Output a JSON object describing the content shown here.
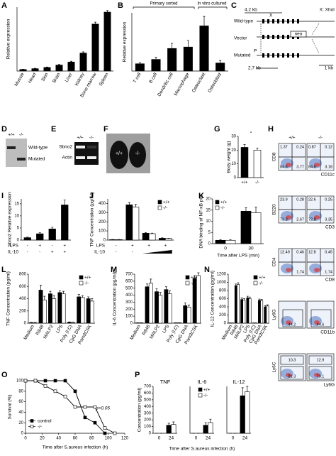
{
  "panel_letters": [
    "A",
    "B",
    "C",
    "D",
    "E",
    "F",
    "G",
    "H",
    "I",
    "J",
    "K",
    "L",
    "M",
    "N",
    "O",
    "P"
  ],
  "chart_data": [
    {
      "type": "bar",
      "ylabel": "Relative expression",
      "categories": [
        "Muscle",
        "Heart",
        "Skin",
        "Brain",
        "Liver",
        "Kidney",
        "Bone marrow",
        "Spleen"
      ],
      "rotate_labels": true,
      "ylim": [
        0,
        3.2
      ],
      "series": [
        {
          "color": "#000000",
          "values": [
            0.08,
            0.12,
            0.18,
            0.3,
            0.45,
            0.9,
            2.35,
            2.95
          ],
          "errors": [
            0.01,
            0.02,
            0.02,
            0.03,
            0.04,
            0.06,
            0.1,
            0.08
          ]
        }
      ]
    },
    {
      "type": "bar",
      "ylabel": "Relative expression",
      "annotations": [
        "Primary sorted",
        "In vitro cultured"
      ],
      "categories": [
        "T cell",
        "B cell",
        "Dendritic cell",
        "Macrophage",
        "Osteoclast",
        "Osteoblast"
      ],
      "rotate_labels": true,
      "ylim": [
        0,
        8
      ],
      "series": [
        {
          "color": "#000000",
          "values": [
            1.0,
            1.6,
            3.1,
            3.3,
            6.2,
            1.1
          ],
          "errors": [
            0.15,
            0.3,
            0.7,
            0.9,
            1.3,
            0.35
          ]
        }
      ]
    },
    {
      "type": "bar",
      "ylabel": "Body weight (g)",
      "annotations": [
        "*"
      ],
      "categories": [
        "+/+",
        "-/-"
      ],
      "bar_colors": [
        "#000000",
        "#ffffff"
      ],
      "ylim": [
        0,
        30
      ],
      "yticks": [
        0,
        10,
        20,
        30
      ],
      "series": [
        {
          "color": "#000000",
          "values": [
            22,
            20
          ],
          "errors": [
            2,
            1.5
          ]
        }
      ]
    },
    {
      "type": "bar",
      "ylabel": "Sbno2 Relative expression",
      "ylim": [
        0,
        17
      ],
      "yticks": [
        0,
        5,
        10,
        15
      ],
      "treatments": [
        {
          "name": "LPS",
          "values": [
            "-",
            "+",
            "-",
            "+"
          ]
        },
        {
          "name": "IL-10",
          "values": [
            "-",
            "-",
            "+",
            "+"
          ]
        }
      ],
      "series": [
        {
          "color": "#000000",
          "values": [
            1,
            2.6,
            4.6,
            14.5
          ],
          "errors": [
            0.2,
            0.5,
            0.7,
            2
          ]
        }
      ]
    },
    {
      "type": "bar",
      "ylabel": "TNF Concentration (pg/ml)",
      "ylim": [
        0,
        450
      ],
      "yticks": [
        0,
        100,
        200,
        300,
        400
      ],
      "legend": "top-right",
      "treatments": [
        {
          "name": "LPS",
          "values": [
            "-",
            "+",
            "+",
            "+"
          ]
        },
        {
          "name": "IL-10",
          "values": [
            "-",
            "-",
            null,
            null
          ],
          "ramp": true
        }
      ],
      "series": [
        {
          "name": "+/+",
          "color": "#000000",
          "values": [
            5,
            385,
            75,
            20
          ],
          "errors": [
            2,
            25,
            8,
            4
          ]
        },
        {
          "name": "-/-",
          "color": "#ffffff",
          "values": [
            5,
            360,
            70,
            18
          ],
          "errors": [
            2,
            30,
            6,
            3
          ]
        }
      ]
    },
    {
      "type": "bar",
      "ylabel": "DNA binding of NF-κB p65",
      "xlabel": "Time after LPS (min)",
      "categories": [
        "0",
        "30"
      ],
      "ylim": [
        0,
        20
      ],
      "yticks": [
        0,
        5,
        10,
        15,
        20
      ],
      "legend": "top-left",
      "series": [
        {
          "name": "+/+",
          "color": "#000000",
          "values": [
            1.5,
            14.5
          ],
          "errors": [
            0.3,
            1.5
          ]
        },
        {
          "name": "-/-",
          "color": "#ffffff",
          "values": [
            1.5,
            13.8
          ],
          "errors": [
            0.3,
            2.5
          ]
        }
      ]
    },
    {
      "type": "bar",
      "ylabel": "TNF Concentration (pg/ml)",
      "categories": [
        "Medium",
        "R848",
        "MALP2",
        "LPS",
        "Poly (I:C)",
        "CpG DNA",
        "Pam3CSK"
      ],
      "rotate_labels": true,
      "ylim": [
        0,
        800
      ],
      "yticks": [
        0,
        200,
        400,
        600,
        800
      ],
      "legend": "top-right",
      "series": [
        {
          "name": "+/+",
          "color": "#000000",
          "values": [
            10,
            540,
            480,
            500,
            15,
            430,
            400
          ],
          "errors": [
            3,
            80,
            40,
            30,
            5,
            40,
            30
          ]
        },
        {
          "name": "-/-",
          "color": "#ffffff",
          "values": [
            10,
            380,
            400,
            480,
            12,
            420,
            360
          ],
          "errors": [
            3,
            60,
            50,
            40,
            5,
            30,
            40
          ]
        }
      ]
    },
    {
      "type": "bar",
      "ylabel": "IL-6 Concentration (pg/ml)",
      "categories": [
        "Medium",
        "R848",
        "MALP2",
        "LPS",
        "Poly (I:C)",
        "CpG DNA",
        "Pam3CSK"
      ],
      "rotate_labels": true,
      "ylim": [
        0,
        700
      ],
      "yticks": [
        0,
        100,
        200,
        300,
        400,
        500,
        600,
        700
      ],
      "legend": "top-right",
      "series": [
        {
          "name": "+/+",
          "color": "#000000",
          "values": [
            5,
            520,
            450,
            480,
            5,
            250,
            640
          ],
          "errors": [
            2,
            40,
            40,
            40,
            2,
            40,
            40
          ]
        },
        {
          "name": "-/-",
          "color": "#ffffff",
          "values": [
            5,
            570,
            400,
            420,
            5,
            230,
            680
          ],
          "errors": [
            2,
            60,
            40,
            40,
            2,
            30,
            40
          ]
        }
      ]
    },
    {
      "type": "bar",
      "ylabel": "IL-12 Concentration (pg/ml)",
      "categories": [
        "Medium",
        "R848",
        "MALP2",
        "LPS",
        "Poly (I:C)",
        "CpG DNA",
        "Pam3CSK"
      ],
      "rotate_labels": true,
      "ylim": [
        0,
        1200
      ],
      "yticks": [
        0,
        200,
        400,
        600,
        800,
        1000,
        1200
      ],
      "legend": "top-right",
      "series": [
        {
          "name": "+/+",
          "color": "#000000",
          "values": [
            5,
            920,
            580,
            620,
            5,
            560,
            400
          ],
          "errors": [
            2,
            40,
            40,
            40,
            2,
            30,
            30
          ]
        },
        {
          "name": "-/-",
          "color": "#ffffff",
          "values": [
            5,
            950,
            560,
            600,
            5,
            550,
            420
          ],
          "errors": [
            2,
            40,
            40,
            40,
            2,
            30,
            30
          ]
        }
      ]
    },
    {
      "type": "line",
      "ylabel": "Survival (%)",
      "xlabel": "Time after S.aureus infection (h)",
      "annotations": [
        "p>0.05"
      ],
      "xlim": [
        0,
        120
      ],
      "xticks": [
        0,
        20,
        40,
        60,
        80,
        100,
        120
      ],
      "ylim": [
        0,
        100
      ],
      "yticks": [
        0,
        20,
        40,
        60,
        80,
        100
      ],
      "legend": "bottom-left",
      "series": [
        {
          "name": "control",
          "color": "#000000",
          "marker_fill": "#000000",
          "x": [
            0,
            12,
            24,
            36,
            48,
            60,
            72,
            84,
            96
          ],
          "values": [
            100,
            100,
            100,
            100,
            100,
            80,
            30,
            20,
            0
          ]
        },
        {
          "name": "-/-",
          "color": "#000000",
          "marker_fill": "#ffffff",
          "x": [
            0,
            12,
            24,
            36,
            48,
            60,
            72,
            84,
            96,
            108
          ],
          "values": [
            100,
            100,
            90,
            80,
            70,
            50,
            50,
            50,
            10,
            0
          ]
        }
      ]
    },
    {
      "type": "bar",
      "title": "TNF",
      "ylabel": "Concentration (pg/ml)",
      "categories": [
        "0",
        "24"
      ],
      "ylim": [
        0,
        700
      ],
      "yticks": [
        0,
        100,
        200,
        300,
        400,
        500,
        600,
        700
      ],
      "series": [
        {
          "color": "#000000",
          "values": [
            0,
            120
          ],
          "errors": [
            0,
            30
          ]
        },
        {
          "color": "#ffffff",
          "values": [
            0,
            130
          ],
          "errors": [
            0,
            40
          ]
        }
      ]
    },
    {
      "type": "bar",
      "title": "IL-6",
      "xlabel": "Time after S.aureus infection (h)",
      "categories": [
        "0",
        "24"
      ],
      "ylim": [
        0,
        700
      ],
      "legend": "top-right",
      "series": [
        {
          "name": "+/+",
          "color": "#000000",
          "values": [
            0,
            120
          ],
          "errors": [
            0,
            40
          ]
        },
        {
          "name": "-/-",
          "color": "#ffffff",
          "values": [
            0,
            160
          ],
          "errors": [
            0,
            50
          ]
        }
      ]
    },
    {
      "type": "bar",
      "title": "IL-12",
      "categories": [
        "0",
        "24"
      ],
      "ylim": [
        0,
        700
      ],
      "series": [
        {
          "color": "#000000",
          "values": [
            0,
            560
          ],
          "errors": [
            0,
            120
          ]
        },
        {
          "color": "#ffffff",
          "values": [
            0,
            620
          ],
          "errors": [
            0,
            80
          ]
        }
      ]
    }
  ],
  "gene_map": {
    "labels": [
      "4.2 kb",
      "X",
      "X: XhoI",
      "Wild-type",
      "Vector",
      "neo",
      "Mutated",
      "P",
      "2.7 kb",
      "1 kb"
    ]
  },
  "genotyping": {
    "lanes": [
      "+/+",
      "-/-"
    ],
    "bands": [
      "Wild-type",
      "Mutated"
    ]
  },
  "rt_pcr": {
    "lanes": [
      "+/+",
      "-/-"
    ],
    "genes": [
      "Sbno2",
      "Actin"
    ]
  },
  "mice": {
    "labels": [
      "+/+",
      "-/-"
    ]
  },
  "flow": {
    "columns": [
      "+/+",
      "-/-"
    ],
    "rows": [
      {
        "y_label": "CD8",
        "x_label": "CD11c",
        "wt": [
          "1.37",
          "0.24",
          "84.6",
          "3.77"
        ],
        "ko": [
          "0.87",
          "0.12",
          "84.6",
          "3.18"
        ]
      },
      {
        "y_label": "B220",
        "x_label": "CD3",
        "wt": [
          "23.9",
          "0.28",
          "73.3",
          "2.67"
        ],
        "ko": [
          "22.6",
          "0.25",
          "72.8",
          "3.35"
        ]
      },
      {
        "y_label": "CD4",
        "x_label": "CD8",
        "wt": [
          "12.49",
          "0.46",
          "1.74"
        ],
        "ko": [
          "12.8",
          "0.45",
          "1.74"
        ]
      },
      {
        "y_label": "Ly6G",
        "x_label": "CD11b",
        "wt": [
          "44.2"
        ],
        "ko": [
          "44.6"
        ]
      },
      {
        "y_label": "Ly6C",
        "x_label": "Ly6G",
        "wt": [
          "10.3",
          "81.3"
        ],
        "ko": [
          "12.9",
          "79.1"
        ]
      }
    ]
  }
}
